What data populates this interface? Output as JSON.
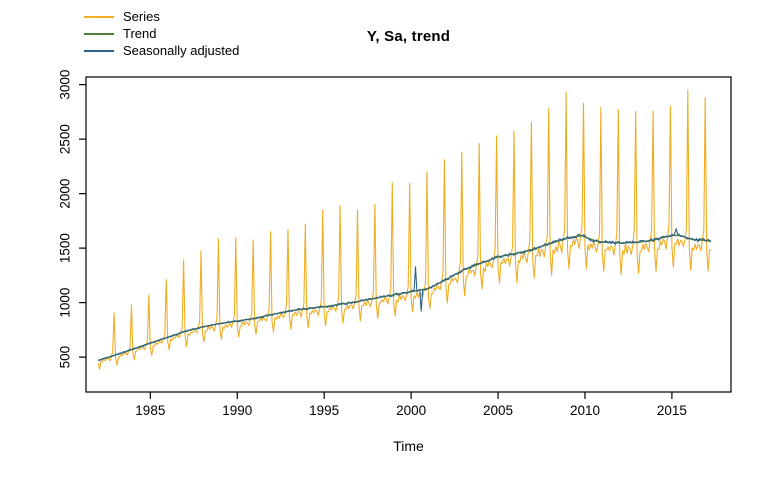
{
  "chart_data": {
    "type": "line",
    "title": "Y, Sa, trend",
    "xlabel": "Time",
    "ylabel": "",
    "x_ticks": [
      1985,
      1990,
      1995,
      2000,
      2005,
      2010,
      2015
    ],
    "y_ticks": [
      500,
      1000,
      1500,
      2000,
      2500,
      3000
    ],
    "x_range": [
      1981.3,
      2018.4
    ],
    "y_range": [
      180,
      3070
    ],
    "grid": false,
    "legend_position": "top-left",
    "colors": {
      "axis": "#000000"
    },
    "legend": [
      {
        "label": "Series",
        "color": "#efad24"
      },
      {
        "label": "Trend",
        "color": "#4d7f3e"
      },
      {
        "label": "Seasonally adjusted",
        "color": "#2e6189"
      }
    ],
    "time_start": 1982.0,
    "time_end": 2017.3,
    "points_per_year": 12,
    "trend_points": [
      [
        1982.0,
        470
      ],
      [
        1983,
        520
      ],
      [
        1984,
        572
      ],
      [
        1985,
        628
      ],
      [
        1986,
        682
      ],
      [
        1987,
        735
      ],
      [
        1988,
        778
      ],
      [
        1989,
        808
      ],
      [
        1990,
        831
      ],
      [
        1991,
        857
      ],
      [
        1992,
        890
      ],
      [
        1993,
        925
      ],
      [
        1994,
        945
      ],
      [
        1995,
        962
      ],
      [
        1996,
        987
      ],
      [
        1997,
        1012
      ],
      [
        1998,
        1042
      ],
      [
        1999,
        1072
      ],
      [
        2000,
        1100
      ],
      [
        2001,
        1130
      ],
      [
        2002,
        1210
      ],
      [
        2003,
        1300
      ],
      [
        2004,
        1360
      ],
      [
        2005,
        1420
      ],
      [
        2006,
        1450
      ],
      [
        2007,
        1490
      ],
      [
        2008,
        1540
      ],
      [
        2009,
        1595
      ],
      [
        2009.8,
        1615
      ],
      [
        2010.5,
        1572
      ],
      [
        2011,
        1555
      ],
      [
        2012,
        1548
      ],
      [
        2013,
        1552
      ],
      [
        2014,
        1575
      ],
      [
        2015,
        1618
      ],
      [
        2015.5,
        1615
      ],
      [
        2016.2,
        1578
      ],
      [
        2017,
        1570
      ],
      [
        2017.4,
        1555
      ]
    ],
    "december_peaks": {
      "start_year": 1982,
      "values": [
        905,
        980,
        1070,
        1210,
        1390,
        1475,
        1585,
        1595,
        1575,
        1650,
        1670,
        1720,
        1850,
        1890,
        1850,
        1900,
        2100,
        2095,
        2200,
        2310,
        2380,
        2460,
        2530,
        2570,
        2655,
        2780,
        2930,
        2830,
        2790,
        2770,
        2755,
        2755,
        2805,
        2950,
        2880
      ]
    },
    "seasonal_factors_jan_to_nov": [
      0.94,
      0.82,
      0.95,
      0.945,
      0.985,
      0.95,
      0.985,
      0.97,
      0.935,
      0.99,
      1.06
    ],
    "series_noise_frac": 0.013,
    "sa_noise_base": 6,
    "sa_noise_slope": 0.35,
    "sa_anomalies": [
      {
        "year": 2000.25,
        "delta": 215,
        "width": 0.04
      },
      {
        "year": 2000.583,
        "delta": -205,
        "width": 0.04
      },
      {
        "year": 2015.25,
        "delta": 50,
        "width": 0.08
      }
    ]
  }
}
